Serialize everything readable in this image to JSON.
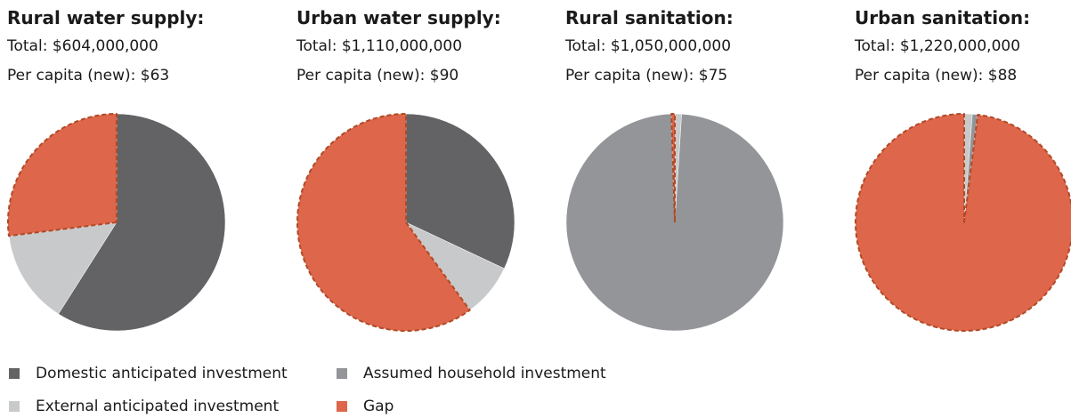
{
  "colors": {
    "domestic": "#636366",
    "external": "#c8c9cb",
    "household": "#939598",
    "gap": "#de664b",
    "gap_outline": "#b04a26"
  },
  "chart_data": [
    {
      "type": "pie",
      "title": "Rural water supply:",
      "total_text": "Total: $604,000,000",
      "per_capita_text": "Per capita (new): $63",
      "slices": [
        {
          "name": "Domestic anticipated investment",
          "value": 59
        },
        {
          "name": "External anticipated investment",
          "value": 14
        },
        {
          "name": "Assumed household investment",
          "value": 0
        },
        {
          "name": "Gap",
          "value": 27
        }
      ]
    },
    {
      "type": "pie",
      "title": "Urban water supply:",
      "total_text": "Total: $1,110,000,000",
      "per_capita_text": "Per capita (new): $90",
      "slices": [
        {
          "name": "Domestic anticipated investment",
          "value": 32
        },
        {
          "name": "External anticipated investment",
          "value": 8
        },
        {
          "name": "Assumed household investment",
          "value": 0
        },
        {
          "name": "Gap",
          "value": 60
        }
      ]
    },
    {
      "type": "pie",
      "title": "Rural sanitation:",
      "total_text": "Total: $1,050,000,000",
      "per_capita_text": "Per capita (new): $75",
      "slices": [
        {
          "name": "Domestic anticipated investment",
          "value": 0
        },
        {
          "name": "External anticipated investment",
          "value": 1
        },
        {
          "name": "Assumed household investment",
          "value": 98.5
        },
        {
          "name": "Gap",
          "value": 0.5
        }
      ]
    },
    {
      "type": "pie",
      "title": "Urban sanitation:",
      "total_text": "Total: $1,220,000,000",
      "per_capita_text": "Per capita (new): $88",
      "slices": [
        {
          "name": "Domestic anticipated investment",
          "value": 0
        },
        {
          "name": "External anticipated investment",
          "value": 1.2
        },
        {
          "name": "Assumed household investment",
          "value": 0.8
        },
        {
          "name": "Gap",
          "value": 98
        }
      ]
    }
  ],
  "legend": [
    {
      "label": "Domestic anticipated investment",
      "color_key": "domestic"
    },
    {
      "label": "Assumed household investment",
      "color_key": "household"
    },
    {
      "label": "External anticipated investment",
      "color_key": "external"
    },
    {
      "label": "Gap",
      "color_key": "gap"
    }
  ]
}
